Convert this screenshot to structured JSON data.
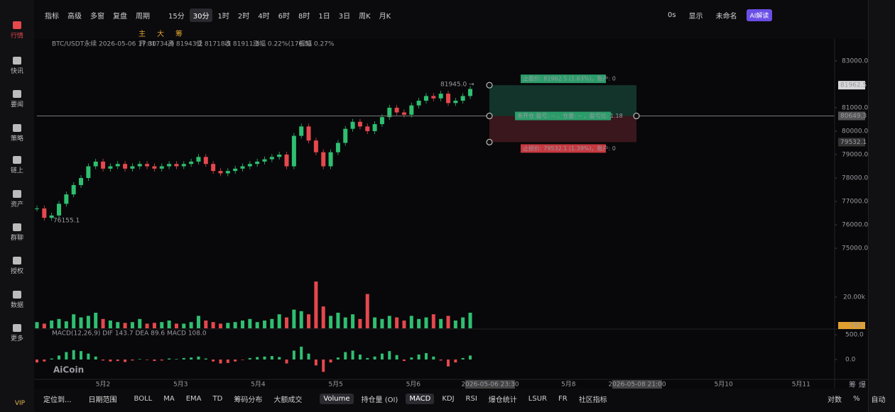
{
  "sidebar": {
    "items": [
      "行情",
      "快讯",
      "要闻",
      "策略",
      "链上",
      "资产",
      "群聊",
      "授权",
      "数据",
      "更多"
    ],
    "active_index": 0,
    "vip": "VIP"
  },
  "toolbar": {
    "left": [
      "指标",
      "高级",
      "多窗",
      "复盘",
      "周期",
      "15分",
      "30分",
      "1时",
      "2时",
      "4时",
      "6时",
      "8时",
      "1日",
      "3日",
      "周K",
      "月K"
    ],
    "active_index": 6,
    "right": [
      "0s",
      "显示",
      "未命名",
      "AI解读"
    ]
  },
  "drawbar": {
    "items": [
      "主",
      "大",
      "筹"
    ]
  },
  "chart": {
    "symbol_line": "BTC/USDT永续 2026-05-06 17:30",
    "ohlc_labels": [
      "开 81734.9",
      "高 81943.2",
      "低 81718.5",
      "收 81911.3",
      "涨幅 0.22%(176.5)",
      "振幅 0.27%"
    ],
    "price": {
      "ylim": [
        74550,
        83480
      ],
      "yticks": [
        {
          "value": 75000,
          "label": "75000.0"
        },
        {
          "value": 76000,
          "label": "76000.0"
        },
        {
          "value": 77000,
          "label": "77000.0"
        },
        {
          "value": 78000,
          "label": "78000.0"
        },
        {
          "value": 79000,
          "label": "79000.0"
        },
        {
          "value": 80000,
          "label": "80000.0"
        },
        {
          "value": 81000,
          "label": "81000.0"
        },
        {
          "value": 83000,
          "label": "83000.0"
        }
      ],
      "closes": [
        76700,
        76300,
        76400,
        76900,
        77300,
        77700,
        78000,
        78500,
        78700,
        78400,
        78500,
        78600,
        78400,
        78500,
        78600,
        78500,
        78400,
        78500,
        78600,
        78500,
        78600,
        78700,
        78900,
        78600,
        78300,
        78200,
        78300,
        78400,
        78500,
        78600,
        78700,
        78800,
        78900,
        79000,
        78500,
        79800,
        80200,
        79600,
        79100,
        78500,
        79100,
        79500,
        80100,
        80400,
        80200,
        80000,
        80300,
        80600,
        81000,
        80800,
        80700,
        81100,
        81300,
        81500,
        81400,
        81600,
        81200,
        81300,
        81500,
        81800
      ],
      "high_marker": "81945.0 →",
      "low_marker": "76155.1"
    },
    "position": {
      "take_profit_label": "止盈价: 81962.5 (1.63%)，账户: 0",
      "entry_label": "未开仓 盈亏: -- ，仓量: -- ，盈亏比: 1.18",
      "stop_label": "止损价: 79532.1 (1.39%)，账户: 0",
      "take_profit": 81962.5,
      "entry": 80649.3,
      "stop": 79532.1
    },
    "volume": {
      "ylim": [
        0,
        40000
      ],
      "yticks": [
        {
          "value": 20000,
          "label": "20.00k"
        }
      ],
      "values": [
        4000,
        3000,
        5000,
        6000,
        4500,
        9000,
        7000,
        8000,
        10000,
        6000,
        5000,
        4000,
        3500,
        4000,
        6000,
        3000,
        3500,
        4000,
        5000,
        3000,
        3000,
        4000,
        8000,
        5000,
        4000,
        3000,
        3500,
        4000,
        5000,
        6000,
        4000,
        5000,
        6000,
        9000,
        7000,
        12000,
        11000,
        9000,
        30000,
        14000,
        8000,
        10000,
        7000,
        9000,
        6000,
        22000,
        7000,
        6000,
        8000,
        7000,
        5000,
        8000,
        6000,
        7000,
        9000,
        6000,
        8000,
        5000,
        7000,
        10000
      ],
      "last_label": "785"
    },
    "macd": {
      "legend": "MACD(12,26,9)  DIF 143.7  DEA 89.6  MACD 108.0",
      "ylim": [
        -330,
        530
      ],
      "yticks": [
        {
          "value": 500,
          "label": "500.0"
        },
        {
          "value": 0,
          "label": "0.0"
        }
      ],
      "values": [
        -60,
        -40,
        20,
        80,
        150,
        190,
        170,
        120,
        60,
        -20,
        -40,
        -30,
        -50,
        -20,
        10,
        -10,
        -30,
        -20,
        20,
        10,
        30,
        40,
        60,
        20,
        -40,
        -80,
        -70,
        -40,
        -10,
        30,
        50,
        60,
        70,
        50,
        -80,
        180,
        260,
        120,
        -120,
        -250,
        -60,
        40,
        150,
        180,
        100,
        30,
        60,
        120,
        170,
        90,
        -30,
        40,
        100,
        130,
        60,
        -20,
        -140,
        -60,
        30,
        80
      ]
    },
    "xlabels": [
      "5月2",
      "5月3",
      "5月4",
      "5月5",
      "5月6",
      null,
      "5月8",
      null,
      "5月10",
      "5月11"
    ],
    "cursor_labels": [
      "2026-05-06 23:30",
      "2026-05-08 21:00"
    ],
    "axis_corner": [
      "筹",
      "爆"
    ],
    "logo": "AiCoin"
  },
  "bottom_bar": {
    "left": [
      "定位到...",
      "日期范围"
    ],
    "indicators": [
      "BOLL",
      "MA",
      "EMA",
      "TD",
      "筹码分布",
      "大额成交"
    ],
    "subcharts": [
      "Volume",
      "持仓量 (OI)",
      "MACD",
      "KDJ",
      "RSI",
      "爆仓统计",
      "LSUR",
      "FR",
      "社区指标"
    ],
    "active_indices": [
      0,
      2
    ],
    "right": [
      "对数",
      "%",
      "自动"
    ]
  }
}
